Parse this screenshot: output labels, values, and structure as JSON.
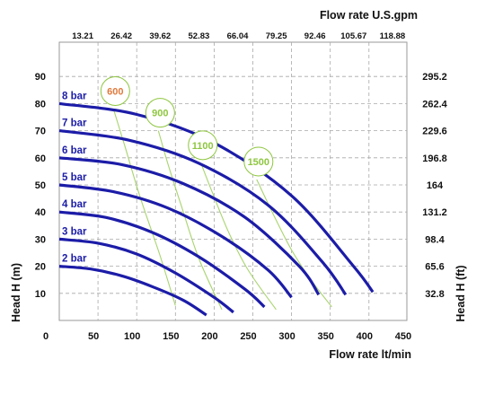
{
  "chart_data": {
    "type": "line",
    "title": "",
    "xlabel_bottom": "Flow rate  lt/min",
    "xlabel_top": "Flow rate U.S.gpm",
    "ylabel_left": "Head H (m)",
    "ylabel_right": "Head H (ft)",
    "xlim": [
      0,
      450
    ],
    "ylim": [
      0,
      95
    ],
    "x_ticks": [
      "0",
      "50",
      "100",
      "150",
      "200",
      "250",
      "300",
      "350",
      "400",
      "450"
    ],
    "y_ticks": [
      "10",
      "20",
      "30",
      "40",
      "50",
      "60",
      "70",
      "80",
      "90"
    ],
    "top_ticks": [
      "13.21",
      "26.42",
      "39.62",
      "52.83",
      "66.04",
      "79.25",
      "92.46",
      "105.67",
      "118.88"
    ],
    "right_ticks": [
      "32.8",
      "65.6",
      "98.4",
      "131.2",
      "164",
      "196.8",
      "229.6",
      "262.4",
      "295.2"
    ],
    "grid": true,
    "pressure_series": [
      {
        "name": "2 bar",
        "color": "#1c1ca8",
        "x": [
          0,
          40,
          80,
          120,
          160,
          190
        ],
        "y": [
          20,
          19,
          16.5,
          12.5,
          7.5,
          2
        ]
      },
      {
        "name": "3 bar",
        "color": "#1c1ca8",
        "x": [
          0,
          50,
          100,
          150,
          200,
          225
        ],
        "y": [
          30,
          28.5,
          24.5,
          17.5,
          8.5,
          3
        ]
      },
      {
        "name": "4 bar",
        "color": "#1c1ca8",
        "x": [
          0,
          60,
          120,
          180,
          240,
          265
        ],
        "y": [
          40,
          38,
          32.5,
          23.5,
          11.5,
          5
        ]
      },
      {
        "name": "5 bar",
        "color": "#1c1ca8",
        "x": [
          0,
          70,
          140,
          210,
          270,
          300
        ],
        "y": [
          50,
          47.5,
          41.5,
          31,
          18.5,
          8.5
        ]
      },
      {
        "name": "6 bar",
        "color": "#1c1ca8",
        "x": [
          0,
          80,
          160,
          240,
          310,
          335
        ],
        "y": [
          60,
          57.5,
          50.5,
          38,
          20,
          9.5
        ]
      },
      {
        "name": "7 bar",
        "color": "#1c1ca8",
        "x": [
          0,
          90,
          180,
          270,
          340,
          370
        ],
        "y": [
          70,
          66.5,
          58,
          42.5,
          21.5,
          9.5
        ]
      },
      {
        "name": "8 bar",
        "color": "#1c1ca8",
        "x": [
          0,
          100,
          200,
          300,
          380,
          405
        ],
        "y": [
          80,
          76,
          65.5,
          46,
          20,
          10.5
        ]
      }
    ],
    "speed_series": [
      {
        "name": "600",
        "color": "#e07a3c",
        "x": [
          70,
          85,
          105,
          130,
          150
        ],
        "y": [
          78,
          64,
          45,
          24,
          5.5
        ]
      },
      {
        "name": "900",
        "color": "#8ec63f",
        "x": [
          128,
          140,
          158,
          180,
          210
        ],
        "y": [
          70,
          58,
          42,
          23,
          4
        ]
      },
      {
        "name": "1100",
        "color": "#8ec63f",
        "x": [
          183,
          198,
          218,
          243,
          280
        ],
        "y": [
          58,
          47,
          33,
          19,
          4
        ]
      },
      {
        "name": "1500",
        "color": "#8ec63f",
        "x": [
          255,
          275,
          300,
          325,
          352
        ],
        "y": [
          52,
          40,
          26,
          15,
          5
        ]
      }
    ]
  }
}
